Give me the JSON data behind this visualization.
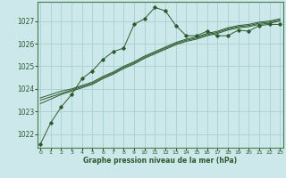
{
  "xlabel": "Graphe pression niveau de la mer (hPa)",
  "background_color": "#cce8ea",
  "grid_color": "#a8d0d0",
  "line_color": "#2d5a2d",
  "spine_color": "#4a7a4a",
  "xlim": [
    -0.3,
    23.3
  ],
  "ylim": [
    1021.4,
    1027.85
  ],
  "yticks": [
    1022,
    1023,
    1024,
    1025,
    1026,
    1027
  ],
  "xticks": [
    0,
    1,
    2,
    3,
    4,
    5,
    6,
    7,
    8,
    9,
    10,
    11,
    12,
    13,
    14,
    15,
    16,
    17,
    18,
    19,
    20,
    21,
    22,
    23
  ],
  "series_main": {
    "x": [
      0,
      1,
      2,
      3,
      4,
      5,
      6,
      7,
      8,
      9,
      10,
      11,
      12,
      13,
      14,
      15,
      16,
      17,
      18,
      19,
      20,
      21,
      22,
      23
    ],
    "y": [
      1021.55,
      1022.5,
      1023.2,
      1023.75,
      1024.45,
      1024.8,
      1025.3,
      1025.65,
      1025.8,
      1026.85,
      1027.1,
      1027.6,
      1027.45,
      1026.8,
      1026.35,
      1026.35,
      1026.55,
      1026.35,
      1026.35,
      1026.6,
      1026.55,
      1026.8,
      1026.85,
      1026.85
    ]
  },
  "series2": {
    "x": [
      0,
      1,
      2,
      3,
      4,
      5,
      6,
      7,
      8,
      9,
      10,
      11,
      12,
      13,
      14,
      15,
      16,
      17,
      18,
      19,
      20,
      21,
      22,
      23
    ],
    "y": [
      1023.35,
      1023.55,
      1023.75,
      1023.9,
      1024.05,
      1024.2,
      1024.45,
      1024.65,
      1024.9,
      1025.1,
      1025.35,
      1025.55,
      1025.75,
      1025.95,
      1026.1,
      1026.2,
      1026.35,
      1026.45,
      1026.6,
      1026.7,
      1026.75,
      1026.85,
      1026.9,
      1027.0
    ]
  },
  "series3": {
    "x": [
      0,
      1,
      2,
      3,
      4,
      5,
      6,
      7,
      8,
      9,
      10,
      11,
      12,
      13,
      14,
      15,
      16,
      17,
      18,
      19,
      20,
      21,
      22,
      23
    ],
    "y": [
      1023.5,
      1023.65,
      1023.8,
      1023.95,
      1024.1,
      1024.25,
      1024.5,
      1024.7,
      1024.95,
      1025.15,
      1025.4,
      1025.6,
      1025.8,
      1026.0,
      1026.15,
      1026.25,
      1026.4,
      1026.5,
      1026.65,
      1026.75,
      1026.8,
      1026.9,
      1026.95,
      1027.05
    ]
  },
  "series4": {
    "x": [
      0,
      1,
      2,
      3,
      4,
      5,
      6,
      7,
      8,
      9,
      10,
      11,
      12,
      13,
      14,
      15,
      16,
      17,
      18,
      19,
      20,
      21,
      22,
      23
    ],
    "y": [
      1023.6,
      1023.75,
      1023.9,
      1024.0,
      1024.15,
      1024.3,
      1024.55,
      1024.75,
      1025.0,
      1025.2,
      1025.45,
      1025.65,
      1025.85,
      1026.05,
      1026.2,
      1026.3,
      1026.45,
      1026.55,
      1026.7,
      1026.8,
      1026.85,
      1026.95,
      1027.0,
      1027.1
    ]
  }
}
